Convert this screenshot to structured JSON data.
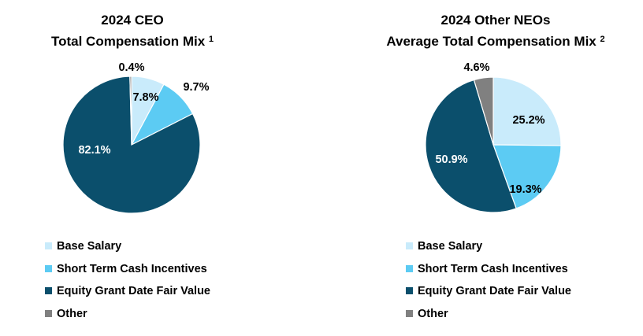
{
  "colors": {
    "base_salary": "#c9ebfb",
    "short_term": "#5ccbf3",
    "equity": "#0b4f6c",
    "other": "#808080"
  },
  "legend_items": [
    {
      "label": "Base Salary",
      "color_key": "base_salary"
    },
    {
      "label": "Short Term Cash Incentives",
      "color_key": "short_term"
    },
    {
      "label": "Equity Grant Date Fair Value",
      "color_key": "equity"
    },
    {
      "label": "Other",
      "color_key": "other"
    }
  ],
  "chart_data": [
    {
      "type": "pie",
      "title_line1": "2024 CEO",
      "title_line2": "Total Compensation Mix",
      "footnote": "1",
      "categories": [
        "Base Salary",
        "Short Term Cash Incentives",
        "Equity Grant Date Fair Value",
        "Other"
      ],
      "values": [
        7.8,
        9.7,
        82.1,
        0.4
      ],
      "labels": [
        "7.8%",
        "9.7%",
        "82.1%",
        "0.4%"
      ],
      "legend_position": "bottom-left"
    },
    {
      "type": "pie",
      "title_line1": "2024 Other NEOs",
      "title_line2": "Average Total Compensation Mix",
      "footnote": "2",
      "categories": [
        "Base Salary",
        "Short Term Cash Incentives",
        "Equity Grant Date Fair Value",
        "Other"
      ],
      "values": [
        25.2,
        19.3,
        50.9,
        4.6
      ],
      "labels": [
        "25.2%",
        "19.3%",
        "50.9%",
        "4.6%"
      ],
      "legend_position": "bottom-left"
    }
  ]
}
